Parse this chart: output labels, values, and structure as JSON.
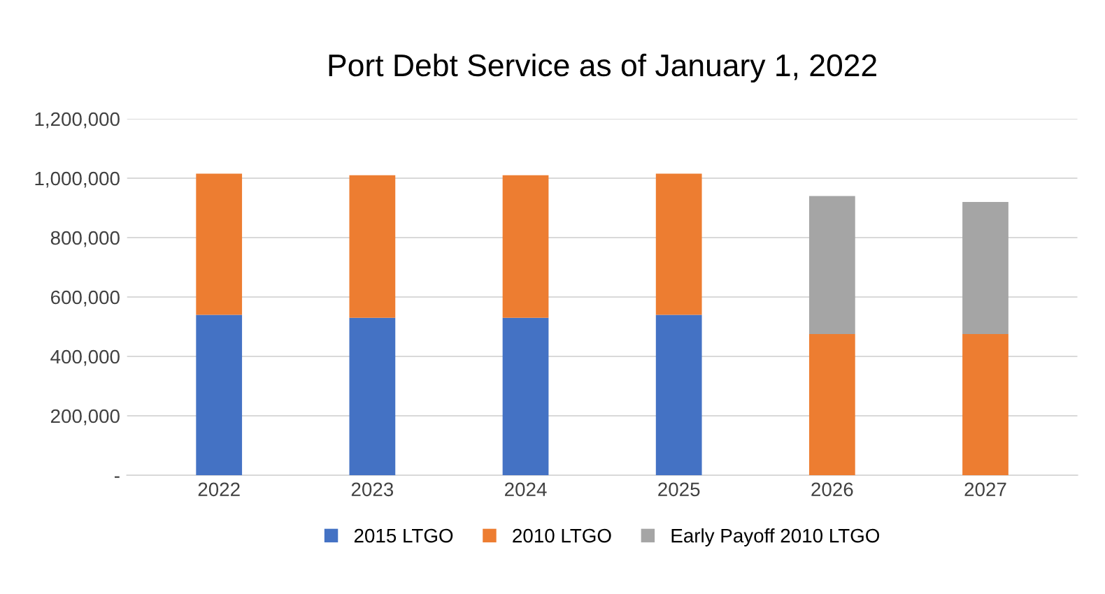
{
  "chart_data": {
    "type": "bar",
    "title": "Port Debt Service as of January 1, 2022",
    "categories": [
      "2022",
      "2023",
      "2024",
      "2025",
      "2026",
      "2027"
    ],
    "stacked": true,
    "series": [
      {
        "name": "2015 LTGO",
        "color": "#4472c4",
        "values": [
          540000,
          530000,
          530000,
          540000,
          null,
          null
        ]
      },
      {
        "name": "2010 LTGO",
        "color": "#ed7d31",
        "values": [
          475000,
          480000,
          480000,
          475000,
          475000,
          475000
        ]
      },
      {
        "name": "Early Payoff 2010 LTGO",
        "color": "#a5a5a5",
        "values": [
          null,
          null,
          null,
          null,
          465000,
          445000
        ]
      }
    ],
    "ylim": [
      0,
      1200000
    ],
    "yticks": [
      {
        "value": 0,
        "label": "-"
      },
      {
        "value": 200000,
        "label": "200,000"
      },
      {
        "value": 400000,
        "label": "400,000"
      },
      {
        "value": 600000,
        "label": "600,000"
      },
      {
        "value": 800000,
        "label": "800,000"
      },
      {
        "value": 1000000,
        "label": "1,000,000"
      },
      {
        "value": 1200000,
        "label": "1,200,000"
      }
    ],
    "grid": "y",
    "legend": "bottom"
  }
}
